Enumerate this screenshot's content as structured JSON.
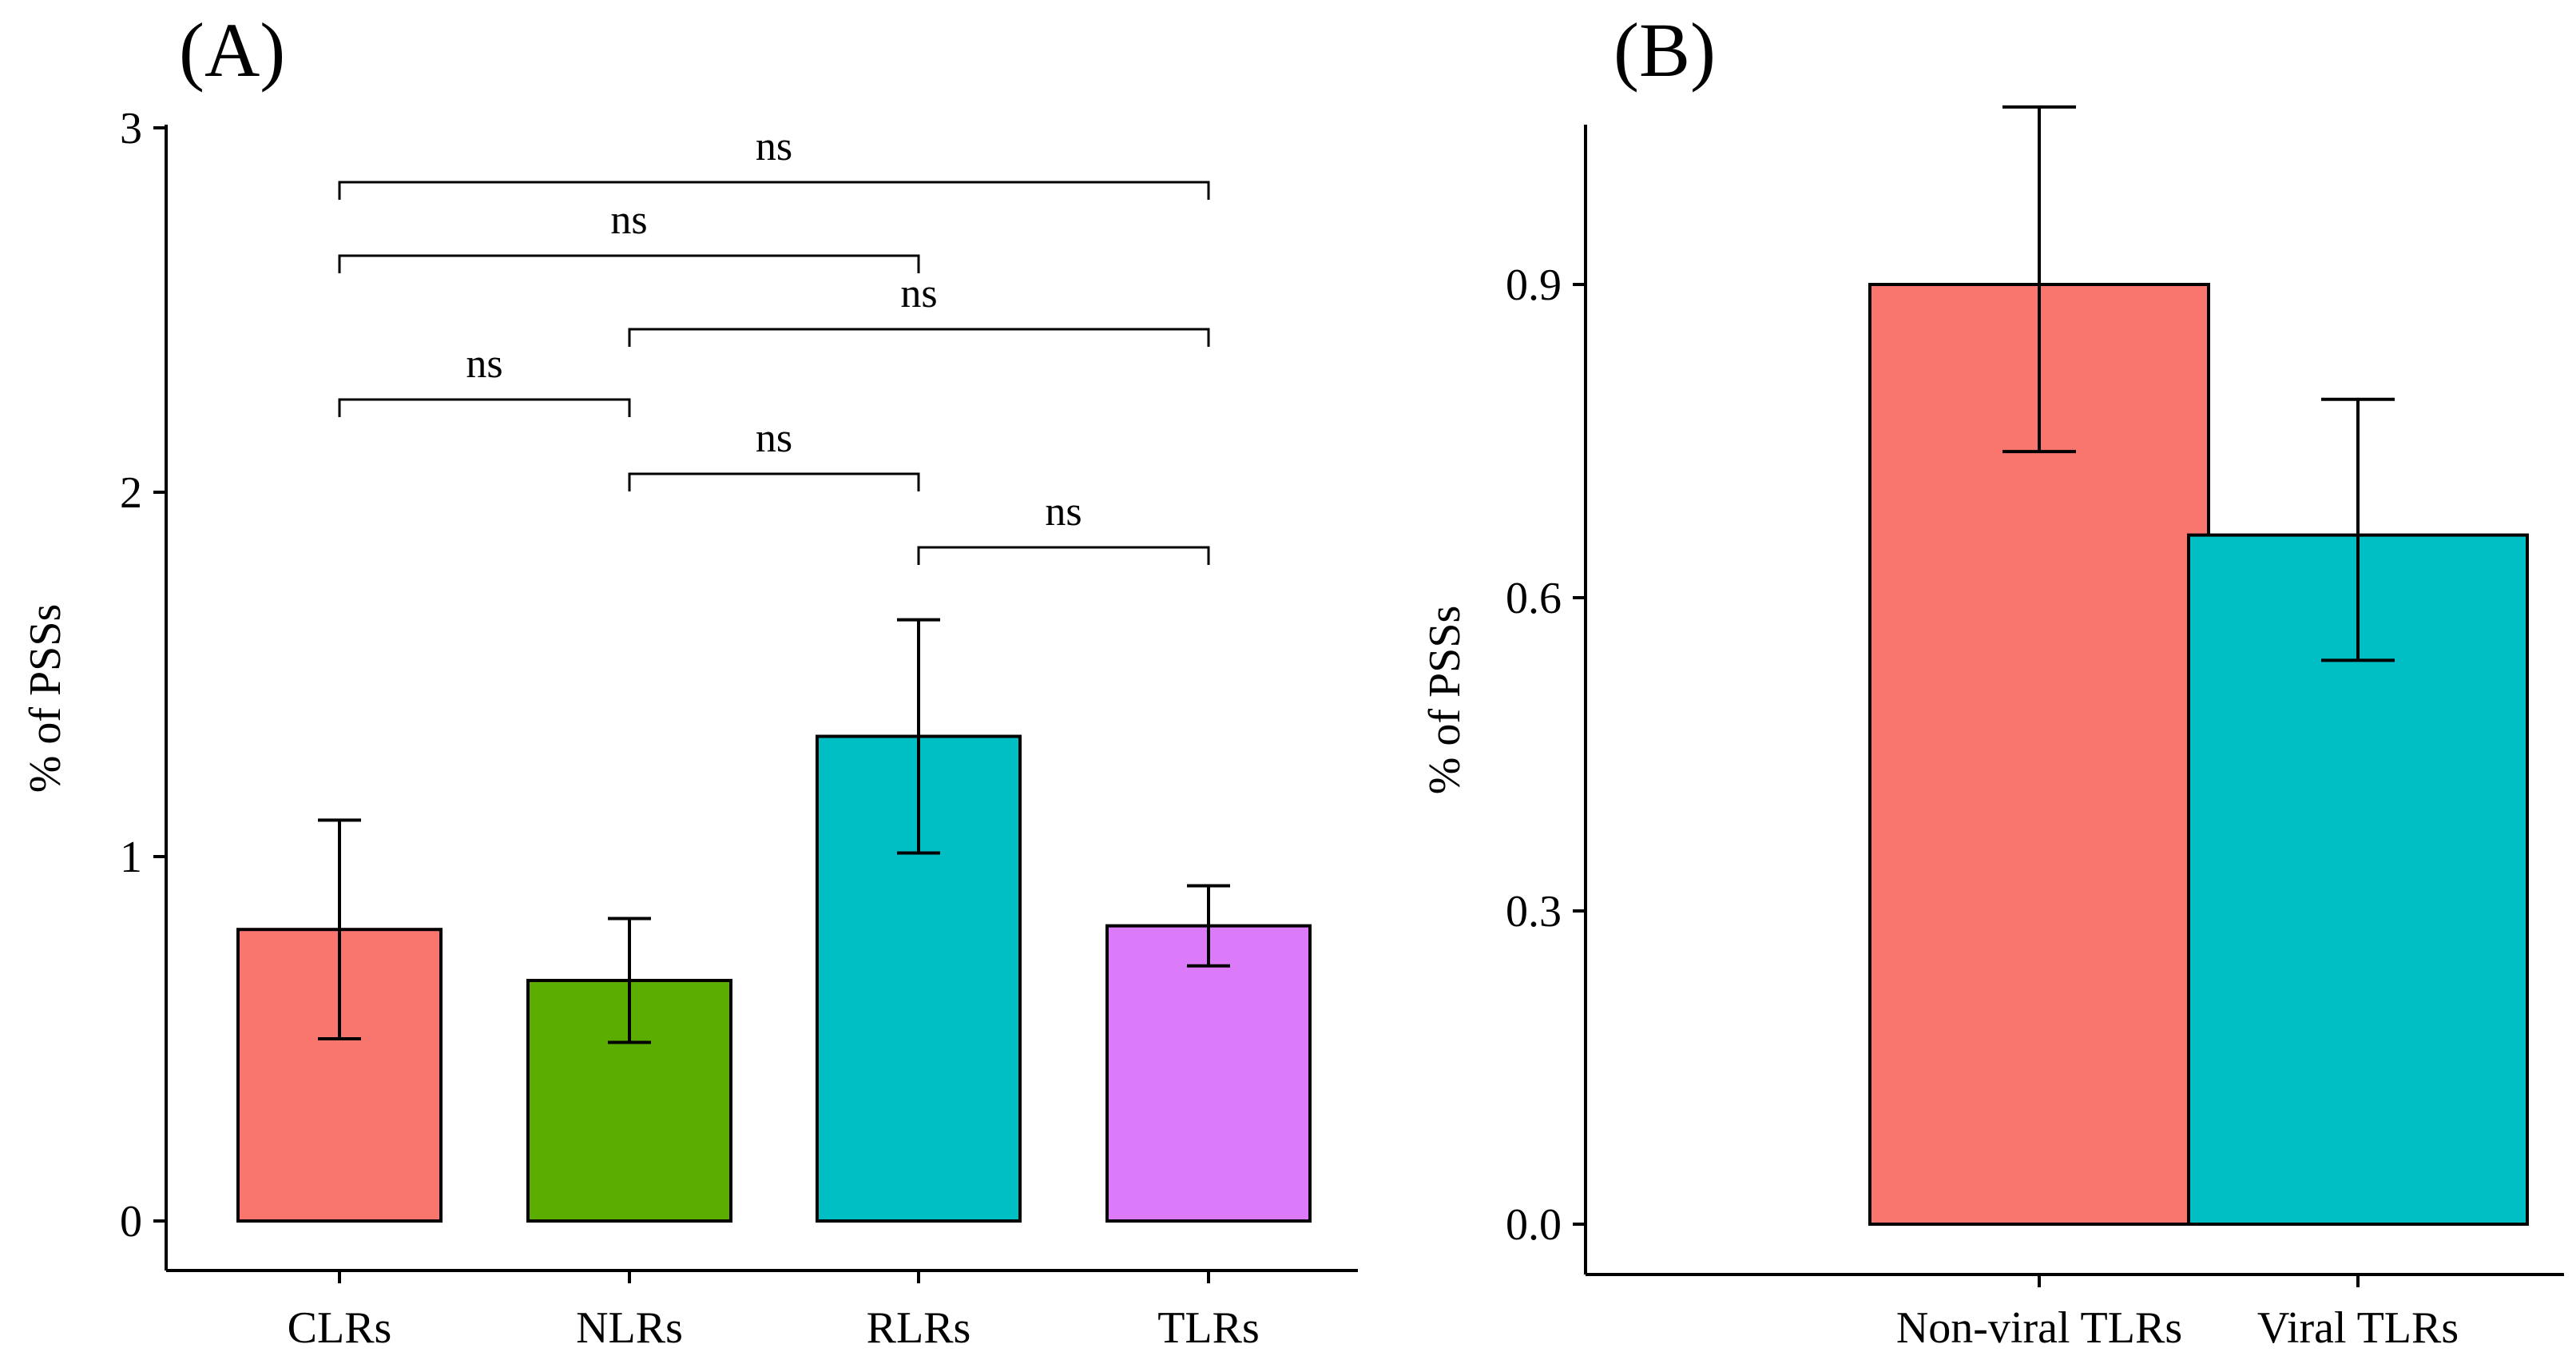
{
  "chart_data": [
    {
      "panel": "(A)",
      "type": "bar",
      "ylabel": "% of PSSs",
      "ylim": [
        0,
        3
      ],
      "yticks": [
        0,
        1,
        2,
        3
      ],
      "ytick_labels": [
        "0",
        "1",
        "2",
        "3"
      ],
      "categories": [
        "CLRs",
        "NLRs",
        "RLRs",
        "TLRs"
      ],
      "values": [
        0.8,
        0.66,
        1.33,
        0.81
      ],
      "error_low": [
        0.5,
        0.49,
        1.01,
        0.7
      ],
      "error_high": [
        1.1,
        0.83,
        1.65,
        0.92
      ],
      "colors": [
        "#F8766D",
        "#5BAE00",
        "#00BFC4",
        "#DB7BF9"
      ],
      "comparisons": [
        {
          "from": "CLRs",
          "to": "TLRs",
          "label": "ns"
        },
        {
          "from": "CLRs",
          "to": "RLRs",
          "label": "ns"
        },
        {
          "from": "NLRs",
          "to": "TLRs",
          "label": "ns"
        },
        {
          "from": "CLRs",
          "to": "NLRs",
          "label": "ns"
        },
        {
          "from": "NLRs",
          "to": "RLRs",
          "label": "ns"
        },
        {
          "from": "RLRs",
          "to": "TLRs",
          "label": "ns"
        }
      ]
    },
    {
      "panel": "(B)",
      "type": "bar",
      "ylabel": "% of PSSs",
      "ylim": [
        0,
        1.05
      ],
      "yticks": [
        0,
        0.3,
        0.6,
        0.9
      ],
      "ytick_labels": [
        "0.0",
        "0.3",
        "0.6",
        "0.9"
      ],
      "categories": [
        "Non-viral TLRs",
        "Viral TLRs"
      ],
      "values": [
        0.9,
        0.66
      ],
      "error_low": [
        0.74,
        0.54
      ],
      "error_high": [
        1.07,
        0.79
      ],
      "colors": [
        "#F8766D",
        "#00BFC4"
      ]
    }
  ]
}
